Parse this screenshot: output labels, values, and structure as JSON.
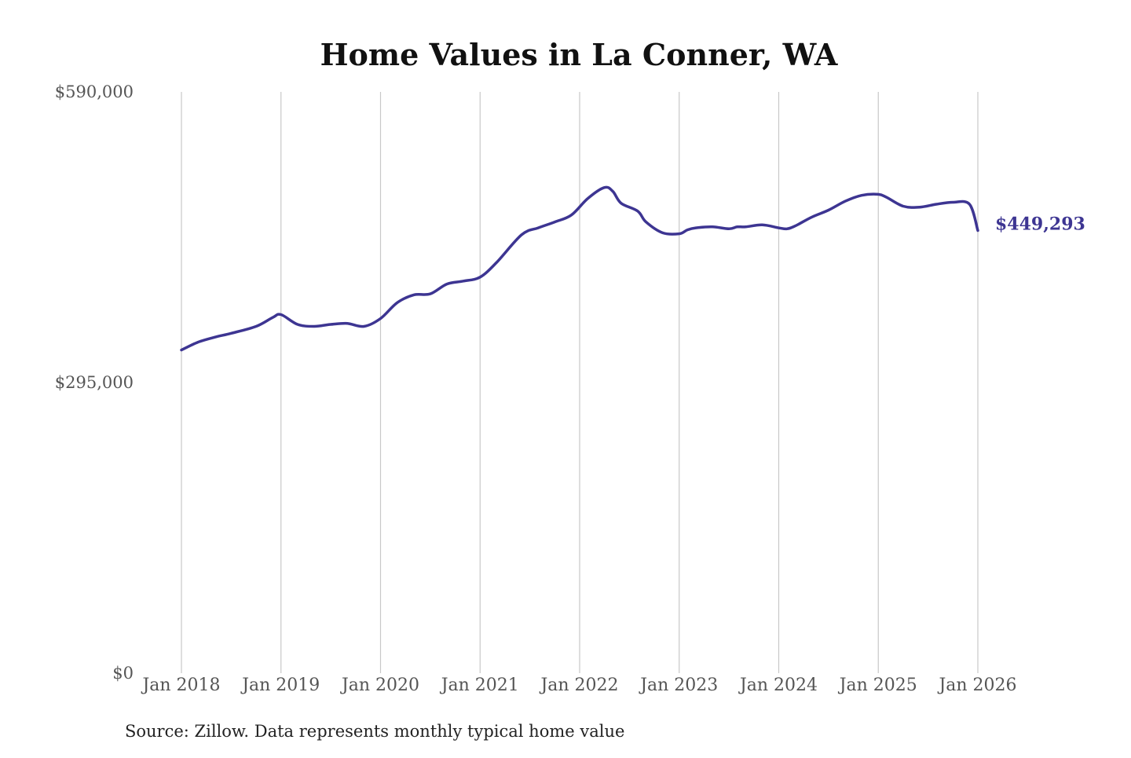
{
  "chart_data": {
    "type": "line",
    "title": "Home Values in La Conner, WA",
    "source": "Source: Zillow. Data represents monthly typical home value",
    "xlabel": "",
    "ylabel": "",
    "ylim": [
      0,
      590000
    ],
    "y_ticks": [
      "$0",
      "$295,000",
      "$590,000"
    ],
    "y_tick_values": [
      0,
      295000,
      590000
    ],
    "x_ticks": [
      "Jan 2018",
      "Jan 2019",
      "Jan 2020",
      "Jan 2021",
      "Jan 2022",
      "Jan 2023",
      "Jan 2024",
      "Jan 2025",
      "Jan 2026"
    ],
    "grid": "vertical",
    "line_color": "#3d3592",
    "end_label": "$449,293",
    "series": [
      {
        "x": [
          "2018-01",
          "2018-03",
          "2018-05",
          "2018-07",
          "2018-10",
          "2018-12",
          "2019-01",
          "2019-03",
          "2019-05",
          "2019-07",
          "2019-09",
          "2019-11",
          "2020-01",
          "2020-03",
          "2020-05",
          "2020-07",
          "2020-09",
          "2020-11",
          "2021-01",
          "2021-03",
          "2021-06",
          "2021-08",
          "2021-10",
          "2021-12",
          "2022-02",
          "2022-04",
          "2022-05",
          "2022-06",
          "2022-08",
          "2022-09",
          "2022-11",
          "2023-01",
          "2023-02",
          "2023-03",
          "2023-05",
          "2023-07",
          "2023-08",
          "2023-09",
          "2023-11",
          "2024-01",
          "2024-02",
          "2024-03",
          "2024-05",
          "2024-07",
          "2024-09",
          "2024-11",
          "2025-01",
          "2025-02",
          "2025-04",
          "2025-06",
          "2025-08",
          "2025-10",
          "2025-12",
          "2026-01"
        ],
        "values": [
          328000,
          336000,
          341000,
          345000,
          352000,
          361000,
          364000,
          354000,
          352000,
          354000,
          355000,
          352000,
          360000,
          376000,
          384000,
          385000,
          395000,
          398000,
          402000,
          417000,
          445000,
          452000,
          458000,
          465000,
          482000,
          493000,
          489000,
          477000,
          469000,
          458000,
          447000,
          446000,
          450000,
          452000,
          453000,
          451000,
          453000,
          453000,
          455000,
          452000,
          451000,
          454000,
          463000,
          470000,
          479000,
          485000,
          486000,
          483000,
          474000,
          473000,
          476000,
          478000,
          476000,
          449293
        ]
      }
    ]
  }
}
